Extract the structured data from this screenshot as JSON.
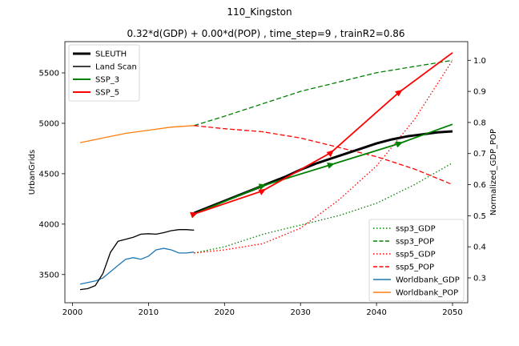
{
  "chart_data": {
    "type": "line",
    "title": "110_Kingston",
    "subtitle": "0.32*d(GDP) + 0.00*d(POP) , time_step=9 , trainR2=0.86",
    "xlabel": "",
    "ylabel": "UrbanGrids",
    "y2label": "Normalized_GDP_POP",
    "xlim": [
      1999,
      2052
    ],
    "ylim": [
      3220,
      5810
    ],
    "y2lim": [
      0.22,
      1.06
    ],
    "x_ticks": [
      2000,
      2010,
      2020,
      2030,
      2040,
      2050
    ],
    "y_ticks": [
      3500,
      4000,
      4500,
      5000,
      5500
    ],
    "y2_ticks": [
      0.3,
      0.4,
      0.5,
      0.6,
      0.7,
      0.8,
      0.9,
      1.0
    ],
    "grid": false,
    "legend_left": [
      {
        "label": "SLEUTH",
        "color": "#000000"
      },
      {
        "label": "Land Scan",
        "color": "#000000"
      },
      {
        "label": "SSP_3",
        "color": "#008000"
      },
      {
        "label": "SSP_5",
        "color": "#ff0000"
      }
    ],
    "legend_right": [
      {
        "label": "ssp3_GDP",
        "color": "#008000"
      },
      {
        "label": "ssp3_POP",
        "color": "#008000"
      },
      {
        "label": "ssp5_GDP",
        "color": "#ff0000"
      },
      {
        "label": "ssp5_POP",
        "color": "#ff0000"
      },
      {
        "label": "Worldbank_GDP",
        "color": "#1f77b4"
      },
      {
        "label": "Worldbank_POP",
        "color": "#ff7f0e"
      }
    ],
    "series_left": [
      {
        "name": "SLEUTH",
        "color": "#000000",
        "x": [
          2016,
          2018,
          2020,
          2022,
          2024,
          2026,
          2028,
          2030,
          2032,
          2034,
          2036,
          2038,
          2040,
          2042,
          2044,
          2046,
          2048,
          2050
        ],
        "y": [
          4110,
          4170,
          4230,
          4290,
          4350,
          4410,
          4470,
          4540,
          4600,
          4650,
          4700,
          4750,
          4800,
          4840,
          4870,
          4890,
          4910,
          4920
        ]
      },
      {
        "name": "Land Scan",
        "color": "#000000",
        "x": [
          2001,
          2002,
          2003,
          2004,
          2005,
          2006,
          2007,
          2008,
          2009,
          2010,
          2011,
          2012,
          2013,
          2014,
          2015,
          2016
        ],
        "y": [
          3350,
          3360,
          3390,
          3510,
          3720,
          3830,
          3850,
          3870,
          3900,
          3905,
          3900,
          3915,
          3935,
          3945,
          3945,
          3940
        ]
      },
      {
        "name": "SSP_3",
        "color": "#008000",
        "x": [
          2016,
          2025,
          2034,
          2043,
          2050
        ],
        "y": [
          4100,
          4380,
          4590,
          4800,
          4990
        ]
      },
      {
        "name": "SSP_5",
        "color": "#ff0000",
        "x": [
          2016,
          2025,
          2034,
          2043,
          2050
        ],
        "y": [
          4100,
          4330,
          4710,
          5310,
          5700
        ]
      }
    ],
    "series_right": [
      {
        "name": "ssp3_GDP",
        "color": "#008000",
        "x": [
          2016,
          2020,
          2025,
          2030,
          2035,
          2040,
          2045,
          2050
        ],
        "y": [
          0.38,
          0.4,
          0.44,
          0.47,
          0.5,
          0.54,
          0.6,
          0.67
        ]
      },
      {
        "name": "ssp3_POP",
        "color": "#008000",
        "x": [
          2016,
          2020,
          2025,
          2030,
          2035,
          2040,
          2045,
          2050
        ],
        "y": [
          0.79,
          0.82,
          0.86,
          0.9,
          0.93,
          0.96,
          0.98,
          1.0
        ]
      },
      {
        "name": "ssp5_GDP",
        "color": "#ff0000",
        "x": [
          2016,
          2020,
          2025,
          2030,
          2035,
          2040,
          2045,
          2050
        ],
        "y": [
          0.38,
          0.39,
          0.41,
          0.46,
          0.55,
          0.66,
          0.81,
          1.0
        ]
      },
      {
        "name": "ssp5_POP",
        "color": "#ff0000",
        "x": [
          2016,
          2020,
          2025,
          2030,
          2035,
          2040,
          2045,
          2050
        ],
        "y": [
          0.79,
          0.78,
          0.77,
          0.75,
          0.72,
          0.69,
          0.65,
          0.6
        ]
      },
      {
        "name": "Worldbank_GDP",
        "color": "#1f77b4",
        "x": [
          2001,
          2002,
          2003,
          2004,
          2005,
          2006,
          2007,
          2008,
          2009,
          2010,
          2011,
          2012,
          2013,
          2014,
          2015,
          2016
        ],
        "y": [
          0.28,
          0.285,
          0.29,
          0.3,
          0.32,
          0.34,
          0.36,
          0.365,
          0.36,
          0.37,
          0.39,
          0.395,
          0.39,
          0.38,
          0.38,
          0.383
        ]
      },
      {
        "name": "Worldbank_POP",
        "color": "#ff7f0e",
        "x": [
          2001,
          2004,
          2007,
          2010,
          2013,
          2016
        ],
        "y": [
          0.735,
          0.75,
          0.765,
          0.775,
          0.785,
          0.79
        ]
      }
    ]
  }
}
